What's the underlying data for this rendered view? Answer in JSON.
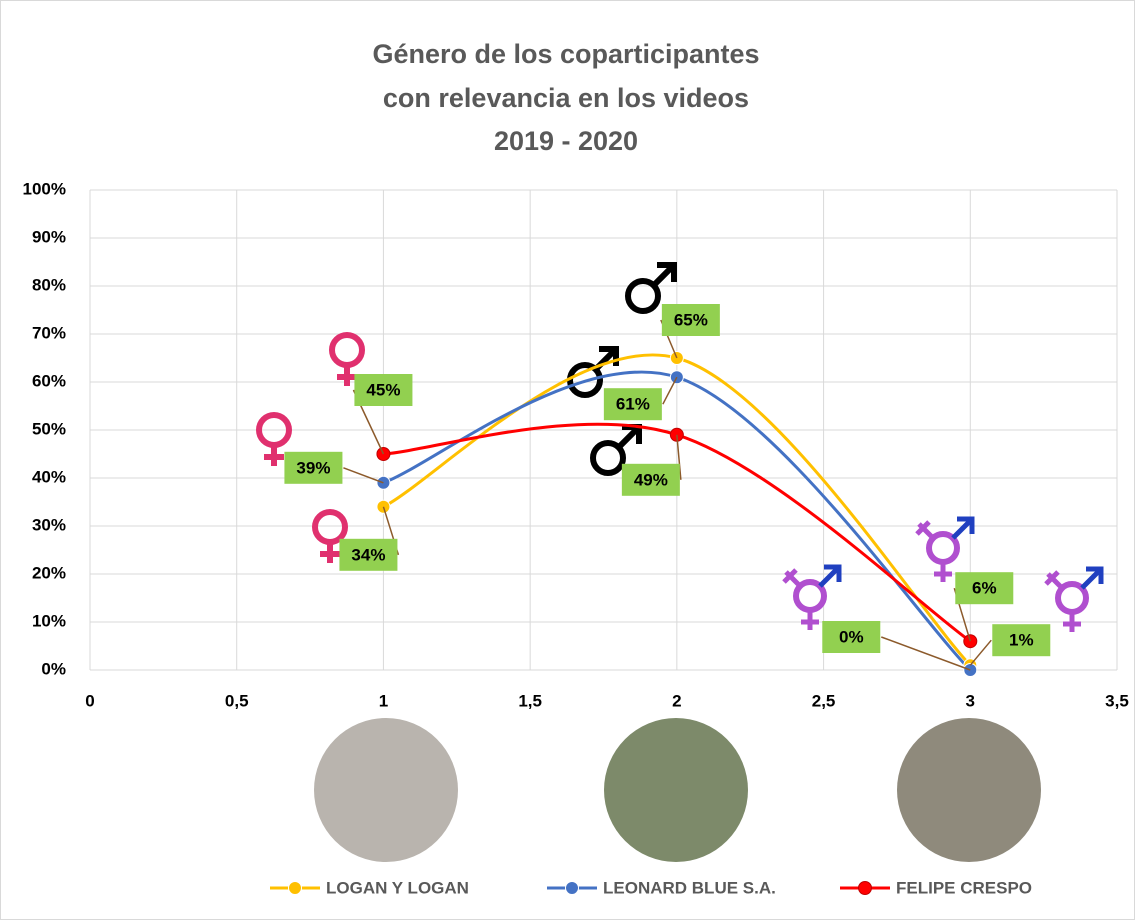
{
  "chart_data": {
    "type": "scatter-smooth",
    "title": [
      "Género de los coparticipantes",
      "con relevancia en los videos",
      "2019 - 2020"
    ],
    "x": [
      1,
      2,
      3
    ],
    "series": [
      {
        "name": "LOGAN Y LOGAN",
        "color": "#FFC000",
        "values": [
          34,
          65,
          1
        ],
        "value_labels": [
          "34%",
          "65%",
          "1%"
        ]
      },
      {
        "name": "LEONARD BLUE S.A.",
        "color": "#4472C4",
        "values": [
          39,
          61,
          0
        ],
        "value_labels": [
          "39%",
          "61%",
          "0%"
        ]
      },
      {
        "name": "FELIPE CRESPO",
        "color": "#FF0000",
        "values": [
          45,
          49,
          6
        ],
        "value_labels": [
          "45%",
          "49%",
          "6%"
        ]
      }
    ],
    "xlim": [
      0,
      3.5
    ],
    "xticks": [
      0,
      {
        "value": 0.5,
        "label": "0,5"
      },
      1,
      {
        "value": 1.5,
        "label": "1,5"
      },
      2,
      {
        "value": 2.5,
        "label": "2,5"
      },
      3,
      {
        "value": 3.5,
        "label": "3,5"
      }
    ],
    "ylim": [
      0,
      100
    ],
    "yticks": [
      {
        "value": 0,
        "label": "0%"
      },
      {
        "value": 10,
        "label": "10%"
      },
      {
        "value": 20,
        "label": "20%"
      },
      {
        "value": 30,
        "label": "30%"
      },
      {
        "value": 40,
        "label": "40%"
      },
      {
        "value": 50,
        "label": "50%"
      },
      {
        "value": 60,
        "label": "60%"
      },
      {
        "value": 70,
        "label": "70%"
      },
      {
        "value": 80,
        "label": "80%"
      },
      {
        "value": 90,
        "label": "90%"
      },
      {
        "value": 100,
        "label": "100%"
      }
    ],
    "grid": true,
    "legend": "bottom"
  }
}
